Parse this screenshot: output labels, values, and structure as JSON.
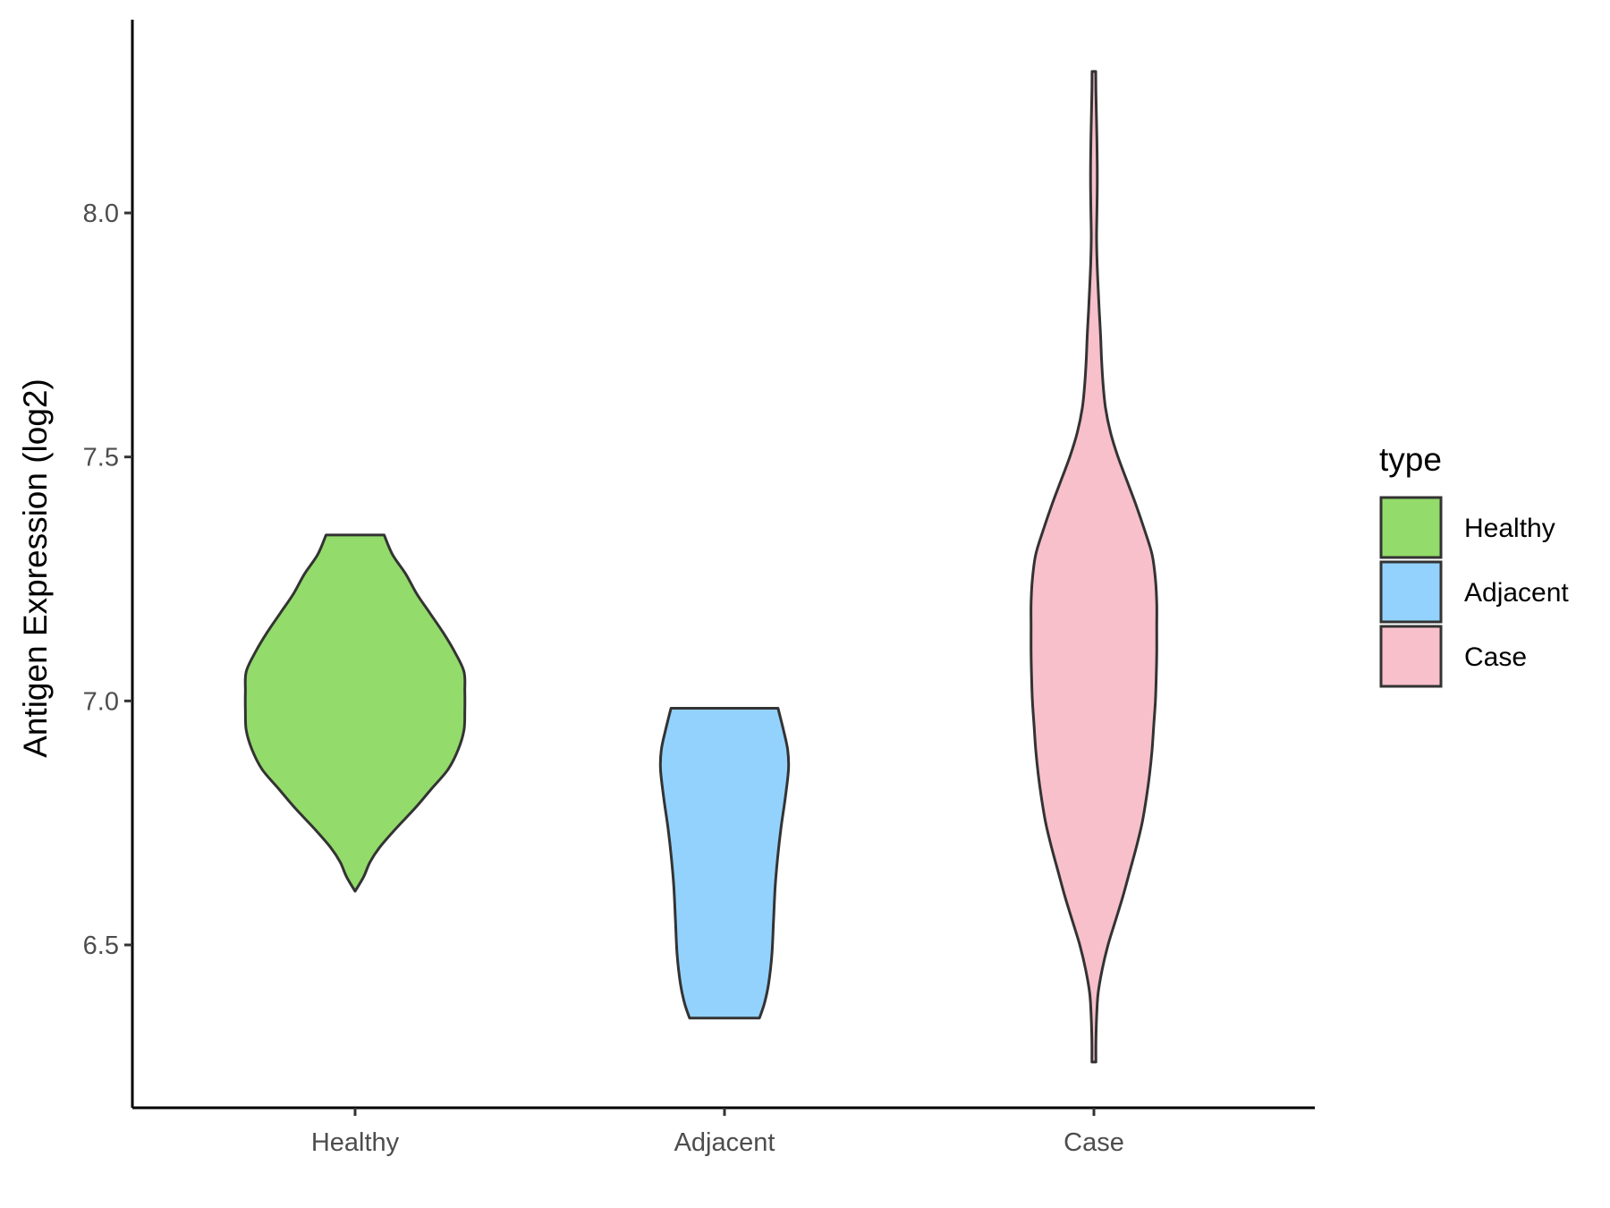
{
  "chart_data": {
    "type": "violin",
    "title": "",
    "xlabel": "",
    "ylabel": "Antigen Expression (log2)",
    "ylim": [
      6.16,
      8.4
    ],
    "yticks": [
      6.5,
      7.0,
      7.5,
      8.0
    ],
    "ytick_labels": [
      "6.5",
      "7.0",
      "7.5",
      "8.0"
    ],
    "categories": [
      "Healthy",
      "Adjacent",
      "Case"
    ],
    "grid": false,
    "legend": {
      "title": "type",
      "position": "right",
      "entries": [
        "Healthy",
        "Adjacent",
        "Case"
      ]
    },
    "colors": {
      "Healthy": "#93DB6A",
      "Adjacent": "#93D2FD",
      "Case": "#F7C0CB",
      "outline": "#333333"
    },
    "series": [
      {
        "name": "Healthy",
        "min": 6.61,
        "max": 7.34,
        "profile": [
          [
            6.61,
            0.0
          ],
          [
            6.64,
            0.052
          ],
          [
            6.67,
            0.09
          ],
          [
            6.7,
            0.148
          ],
          [
            6.74,
            0.25
          ],
          [
            6.78,
            0.36
          ],
          [
            6.82,
            0.46
          ],
          [
            6.86,
            0.56
          ],
          [
            6.9,
            0.62
          ],
          [
            6.94,
            0.655
          ],
          [
            6.98,
            0.66
          ],
          [
            7.02,
            0.66
          ],
          [
            7.06,
            0.655
          ],
          [
            7.1,
            0.6
          ],
          [
            7.14,
            0.53
          ],
          [
            7.18,
            0.45
          ],
          [
            7.22,
            0.37
          ],
          [
            7.26,
            0.305
          ],
          [
            7.3,
            0.225
          ],
          [
            7.34,
            0.175
          ]
        ]
      },
      {
        "name": "Adjacent",
        "min": 6.35,
        "max": 6.985,
        "profile": [
          [
            6.35,
            0.21
          ],
          [
            6.38,
            0.24
          ],
          [
            6.42,
            0.265
          ],
          [
            6.48,
            0.285
          ],
          [
            6.55,
            0.295
          ],
          [
            6.62,
            0.305
          ],
          [
            6.68,
            0.32
          ],
          [
            6.74,
            0.34
          ],
          [
            6.8,
            0.365
          ],
          [
            6.86,
            0.385
          ],
          [
            6.9,
            0.38
          ],
          [
            6.94,
            0.355
          ],
          [
            6.985,
            0.322
          ]
        ]
      },
      {
        "name": "Case",
        "min": 6.26,
        "max": 8.29,
        "profile": [
          [
            6.26,
            0.012
          ],
          [
            6.3,
            0.012
          ],
          [
            6.35,
            0.016
          ],
          [
            6.4,
            0.025
          ],
          [
            6.45,
            0.05
          ],
          [
            6.5,
            0.085
          ],
          [
            6.55,
            0.13
          ],
          [
            6.6,
            0.175
          ],
          [
            6.65,
            0.215
          ],
          [
            6.7,
            0.255
          ],
          [
            6.75,
            0.29
          ],
          [
            6.8,
            0.315
          ],
          [
            6.85,
            0.335
          ],
          [
            6.9,
            0.35
          ],
          [
            6.95,
            0.36
          ],
          [
            7.0,
            0.37
          ],
          [
            7.05,
            0.375
          ],
          [
            7.1,
            0.378
          ],
          [
            7.15,
            0.378
          ],
          [
            7.2,
            0.378
          ],
          [
            7.25,
            0.37
          ],
          [
            7.3,
            0.35
          ],
          [
            7.35,
            0.305
          ],
          [
            7.4,
            0.255
          ],
          [
            7.45,
            0.2
          ],
          [
            7.5,
            0.145
          ],
          [
            7.55,
            0.1
          ],
          [
            7.6,
            0.07
          ],
          [
            7.65,
            0.055
          ],
          [
            7.7,
            0.046
          ],
          [
            7.75,
            0.04
          ],
          [
            7.8,
            0.032
          ],
          [
            7.85,
            0.025
          ],
          [
            7.9,
            0.019
          ],
          [
            7.95,
            0.016
          ],
          [
            8.0,
            0.018
          ],
          [
            8.05,
            0.02
          ],
          [
            8.1,
            0.02
          ],
          [
            8.15,
            0.018
          ],
          [
            8.2,
            0.015
          ],
          [
            8.25,
            0.012
          ],
          [
            8.29,
            0.011
          ]
        ]
      }
    ]
  }
}
